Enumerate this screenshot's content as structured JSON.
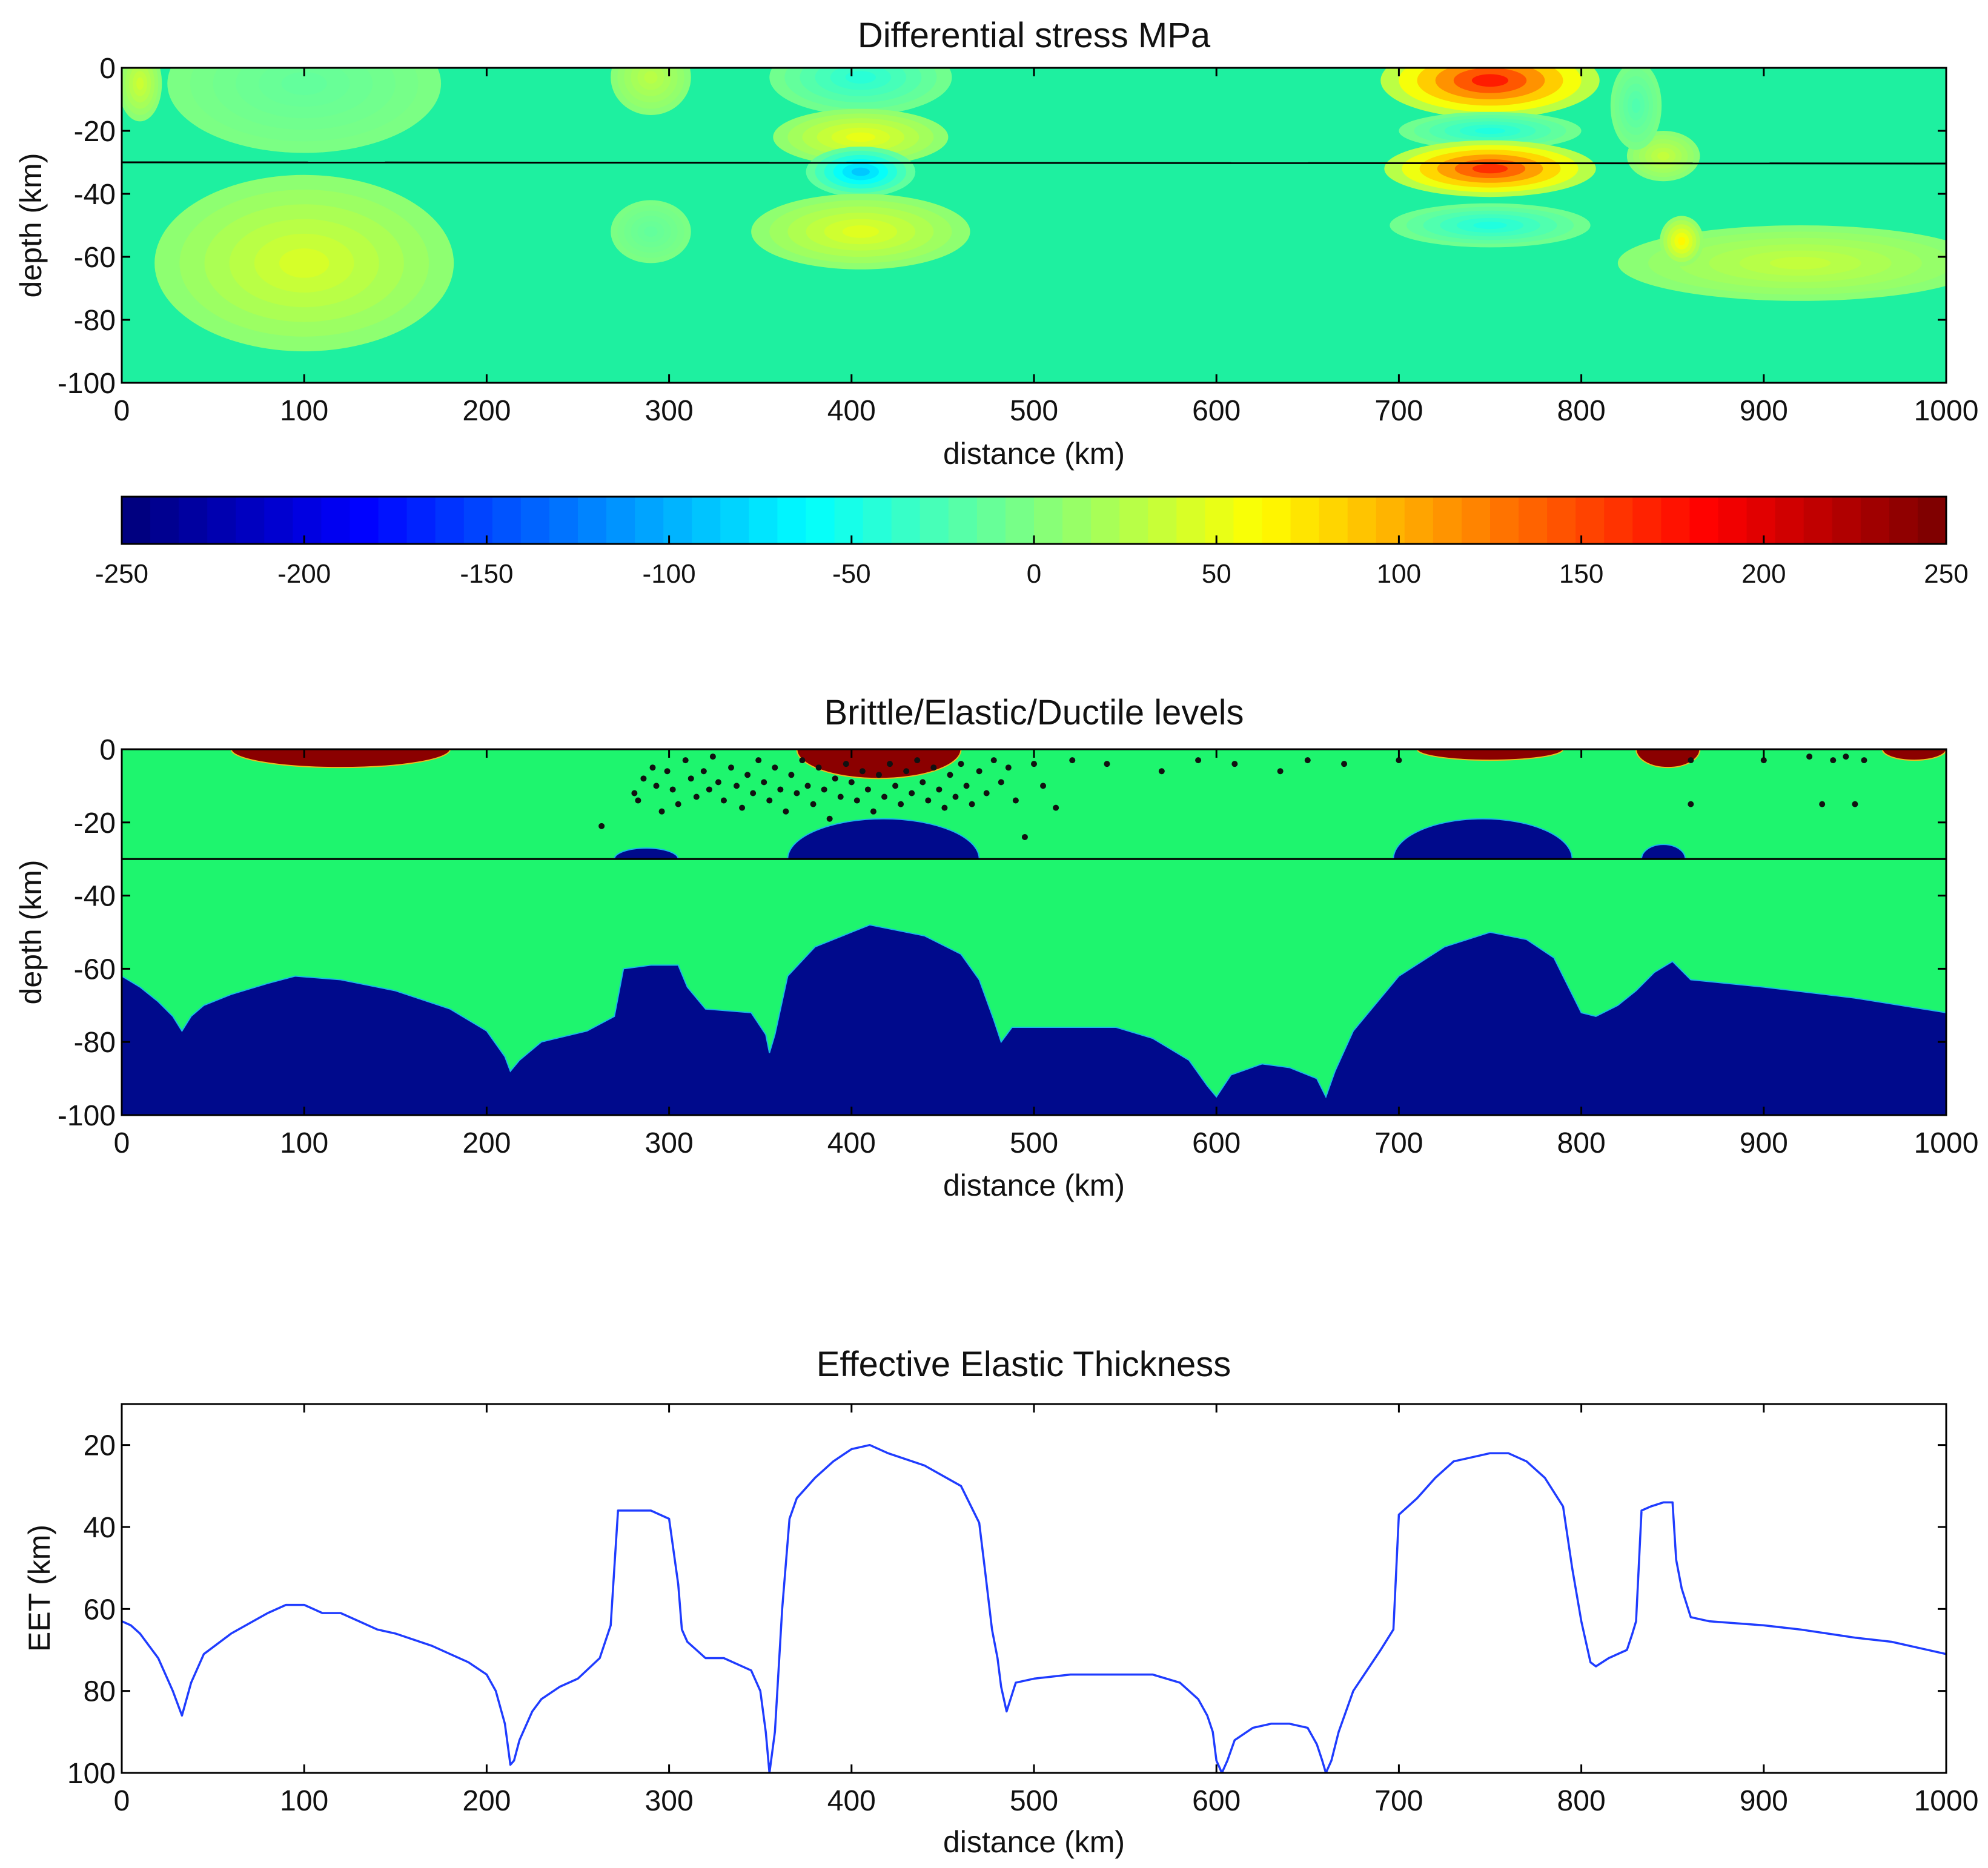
{
  "chart_data": [
    {
      "type": "heatmap",
      "title": "Differential stress MPa",
      "xlabel": "distance (km)",
      "ylabel": "depth (km)",
      "xlim": [
        0,
        1000
      ],
      "ylim": [
        -100,
        0
      ],
      "xticks": [
        "0",
        "100",
        "200",
        "300",
        "400",
        "500",
        "600",
        "700",
        "800",
        "900",
        "1000"
      ],
      "yticks": [
        "0",
        "-20",
        "-40",
        "-60",
        "-80",
        "-100"
      ],
      "moho_depth": -30,
      "colormap": "jet",
      "colorbar": {
        "range": [
          -250,
          250
        ],
        "ticks": [
          "-250",
          "-200",
          "-150",
          "-100",
          "-50",
          "0",
          "50",
          "100",
          "150",
          "200",
          "250"
        ]
      },
      "anomalies": [
        {
          "x": 10,
          "z": -5,
          "rx": 12,
          "rz": 12,
          "value": 40
        },
        {
          "x": 100,
          "z": -5,
          "rx": 75,
          "rz": 22,
          "value": -15
        },
        {
          "x": 100,
          "z": -62,
          "rx": 82,
          "rz": 28,
          "value": 45
        },
        {
          "x": 290,
          "z": -3,
          "rx": 22,
          "rz": 12,
          "value": 30
        },
        {
          "x": 290,
          "z": -52,
          "rx": 22,
          "rz": 10,
          "value": -15
        },
        {
          "x": 405,
          "z": -3,
          "rx": 50,
          "rz": 12,
          "value": -45
        },
        {
          "x": 405,
          "z": -22,
          "rx": 48,
          "rz": 9,
          "value": 55
        },
        {
          "x": 405,
          "z": -33,
          "rx": 30,
          "rz": 8,
          "value": -95
        },
        {
          "x": 405,
          "z": -52,
          "rx": 60,
          "rz": 12,
          "value": 50
        },
        {
          "x": 750,
          "z": -4,
          "rx": 60,
          "rz": 12,
          "value": 185
        },
        {
          "x": 750,
          "z": -20,
          "rx": 50,
          "rz": 6,
          "value": -50
        },
        {
          "x": 750,
          "z": -32,
          "rx": 58,
          "rz": 9,
          "value": 175
        },
        {
          "x": 750,
          "z": -50,
          "rx": 55,
          "rz": 7,
          "value": -50
        },
        {
          "x": 845,
          "z": -28,
          "rx": 20,
          "rz": 8,
          "value": 35
        },
        {
          "x": 830,
          "z": -12,
          "rx": 14,
          "rz": 14,
          "value": -25
        },
        {
          "x": 920,
          "z": -62,
          "rx": 100,
          "rz": 12,
          "value": 35
        },
        {
          "x": 855,
          "z": -55,
          "rx": 12,
          "rz": 8,
          "value": 70
        }
      ]
    },
    {
      "type": "heatmap",
      "title": "Brittle/Elastic/Ductile levels",
      "xlabel": "distance (km)",
      "ylabel": "depth (km)",
      "xlim": [
        0,
        1000
      ],
      "ylim": [
        -100,
        0
      ],
      "xticks": [
        "0",
        "100",
        "200",
        "300",
        "400",
        "500",
        "600",
        "700",
        "800",
        "900",
        "1000"
      ],
      "yticks": [
        "0",
        "-20",
        "-40",
        "-60",
        "-80",
        "-100"
      ],
      "moho_depth": -30,
      "classes": {
        "brittle": "#8b0000",
        "elastic": "#1ef56e",
        "ductile": "#000a8c"
      },
      "brittle_zones": [
        {
          "x0": 60,
          "x1": 180,
          "depth": -5
        },
        {
          "x0": 370,
          "x1": 460,
          "depth": -8
        },
        {
          "x0": 710,
          "x1": 790,
          "depth": -3
        },
        {
          "x0": 830,
          "x1": 865,
          "depth": -5
        },
        {
          "x0": 965,
          "x1": 1000,
          "depth": -3
        }
      ],
      "crust_ductile_zones": [
        {
          "x0": 270,
          "x1": 305,
          "top": -27
        },
        {
          "x0": 365,
          "x1": 470,
          "top": -19
        },
        {
          "x0": 697,
          "x1": 795,
          "top": -19
        },
        {
          "x0": 833,
          "x1": 857,
          "top": -26
        }
      ],
      "mantle_ductile_top": [
        [
          0,
          -62
        ],
        [
          10,
          -65
        ],
        [
          20,
          -69
        ],
        [
          28,
          -73
        ],
        [
          33,
          -77
        ],
        [
          38,
          -73
        ],
        [
          45,
          -70
        ],
        [
          60,
          -67
        ],
        [
          80,
          -64
        ],
        [
          95,
          -62
        ],
        [
          120,
          -63
        ],
        [
          150,
          -66
        ],
        [
          180,
          -71
        ],
        [
          200,
          -77
        ],
        [
          210,
          -84
        ],
        [
          213,
          -88
        ],
        [
          218,
          -85
        ],
        [
          230,
          -80
        ],
        [
          255,
          -77
        ],
        [
          270,
          -73
        ],
        [
          275,
          -60
        ],
        [
          290,
          -59
        ],
        [
          305,
          -59
        ],
        [
          310,
          -65
        ],
        [
          320,
          -71
        ],
        [
          345,
          -72
        ],
        [
          353,
          -78
        ],
        [
          355,
          -83
        ],
        [
          358,
          -78
        ],
        [
          365,
          -62
        ],
        [
          380,
          -54
        ],
        [
          400,
          -50
        ],
        [
          410,
          -48
        ],
        [
          440,
          -51
        ],
        [
          460,
          -56
        ],
        [
          470,
          -63
        ],
        [
          478,
          -74
        ],
        [
          482,
          -80
        ],
        [
          488,
          -76
        ],
        [
          500,
          -76
        ],
        [
          545,
          -76
        ],
        [
          565,
          -79
        ],
        [
          585,
          -85
        ],
        [
          595,
          -92
        ],
        [
          600,
          -95
        ],
        [
          608,
          -89
        ],
        [
          625,
          -86
        ],
        [
          640,
          -87
        ],
        [
          655,
          -90
        ],
        [
          660,
          -95
        ],
        [
          665,
          -88
        ],
        [
          675,
          -77
        ],
        [
          690,
          -68
        ],
        [
          700,
          -62
        ],
        [
          725,
          -54
        ],
        [
          750,
          -50
        ],
        [
          770,
          -52
        ],
        [
          785,
          -57
        ],
        [
          795,
          -67
        ],
        [
          800,
          -72
        ],
        [
          808,
          -73
        ],
        [
          820,
          -70
        ],
        [
          830,
          -66
        ],
        [
          840,
          -61
        ],
        [
          850,
          -58
        ],
        [
          860,
          -63
        ],
        [
          900,
          -65
        ],
        [
          950,
          -68
        ],
        [
          1000,
          -72
        ]
      ],
      "earthquakes": [
        [
          263,
          -21
        ],
        [
          281,
          -12
        ],
        [
          283,
          -14
        ],
        [
          286,
          -8
        ],
        [
          291,
          -5
        ],
        [
          293,
          -10
        ],
        [
          296,
          -17
        ],
        [
          299,
          -6
        ],
        [
          302,
          -11
        ],
        [
          305,
          -15
        ],
        [
          309,
          -3
        ],
        [
          312,
          -8
        ],
        [
          315,
          -13
        ],
        [
          319,
          -6
        ],
        [
          322,
          -11
        ],
        [
          324,
          -2
        ],
        [
          327,
          -9
        ],
        [
          330,
          -14
        ],
        [
          334,
          -5
        ],
        [
          337,
          -10
        ],
        [
          340,
          -16
        ],
        [
          343,
          -7
        ],
        [
          346,
          -12
        ],
        [
          349,
          -3
        ],
        [
          352,
          -9
        ],
        [
          355,
          -14
        ],
        [
          358,
          -5
        ],
        [
          361,
          -11
        ],
        [
          364,
          -17
        ],
        [
          367,
          -7
        ],
        [
          370,
          -12
        ],
        [
          373,
          -3
        ],
        [
          376,
          -10
        ],
        [
          379,
          -15
        ],
        [
          382,
          -5
        ],
        [
          385,
          -11
        ],
        [
          388,
          -19
        ],
        [
          391,
          -8
        ],
        [
          394,
          -13
        ],
        [
          397,
          -4
        ],
        [
          400,
          -9
        ],
        [
          403,
          -14
        ],
        [
          406,
          -6
        ],
        [
          409,
          -11
        ],
        [
          412,
          -17
        ],
        [
          415,
          -7
        ],
        [
          418,
          -13
        ],
        [
          421,
          -4
        ],
        [
          424,
          -10
        ],
        [
          427,
          -15
        ],
        [
          430,
          -6
        ],
        [
          433,
          -12
        ],
        [
          436,
          -3
        ],
        [
          439,
          -9
        ],
        [
          442,
          -14
        ],
        [
          445,
          -5
        ],
        [
          448,
          -11
        ],
        [
          451,
          -16
        ],
        [
          454,
          -7
        ],
        [
          457,
          -13
        ],
        [
          460,
          -4
        ],
        [
          463,
          -10
        ],
        [
          466,
          -15
        ],
        [
          470,
          -6
        ],
        [
          474,
          -12
        ],
        [
          478,
          -3
        ],
        [
          482,
          -9
        ],
        [
          486,
          -5
        ],
        [
          490,
          -14
        ],
        [
          495,
          -24
        ],
        [
          500,
          -4
        ],
        [
          505,
          -10
        ],
        [
          512,
          -16
        ],
        [
          521,
          -3
        ],
        [
          540,
          -4
        ],
        [
          570,
          -6
        ],
        [
          590,
          -3
        ],
        [
          610,
          -4
        ],
        [
          635,
          -6
        ],
        [
          650,
          -3
        ],
        [
          670,
          -4
        ],
        [
          700,
          -3
        ],
        [
          860,
          -3
        ],
        [
          860,
          -15
        ],
        [
          900,
          -3
        ],
        [
          925,
          -2
        ],
        [
          932,
          -15
        ],
        [
          938,
          -3
        ],
        [
          945,
          -2
        ],
        [
          950,
          -15
        ],
        [
          955,
          -3
        ]
      ]
    },
    {
      "type": "line",
      "title": "Effective Elastic Thickness",
      "xlabel": "distance (km)",
      "ylabel": "EET (km)",
      "xlim": [
        0,
        1000
      ],
      "ylim": [
        100,
        10
      ],
      "y_inverted": true,
      "xticks": [
        "0",
        "100",
        "200",
        "300",
        "400",
        "500",
        "600",
        "700",
        "800",
        "900",
        "1000"
      ],
      "yticks": [
        "20",
        "40",
        "60",
        "80",
        "100"
      ],
      "line_color": "#1f3cff",
      "x": [
        0,
        5,
        10,
        20,
        28,
        33,
        38,
        45,
        60,
        80,
        90,
        100,
        110,
        120,
        130,
        140,
        150,
        170,
        180,
        190,
        200,
        205,
        210,
        213,
        215,
        218,
        225,
        230,
        240,
        250,
        262,
        268,
        270,
        272,
        275,
        290,
        300,
        305,
        307,
        310,
        320,
        330,
        345,
        350,
        353,
        355,
        358,
        362,
        366,
        370,
        380,
        390,
        400,
        410,
        420,
        440,
        460,
        470,
        473,
        477,
        480,
        482,
        485,
        490,
        500,
        520,
        540,
        560,
        565,
        580,
        590,
        595,
        598,
        600,
        603,
        606,
        610,
        620,
        630,
        640,
        650,
        655,
        658,
        660,
        663,
        667,
        675,
        690,
        697,
        700,
        710,
        720,
        730,
        750,
        760,
        770,
        780,
        790,
        795,
        800,
        805,
        808,
        815,
        825,
        828,
        830,
        833,
        838,
        845,
        850,
        852,
        855,
        860,
        870,
        900,
        920,
        950,
        970,
        1000
      ],
      "y": [
        63,
        64,
        66,
        72,
        80,
        86,
        78,
        71,
        66,
        61,
        59,
        59,
        61,
        61,
        63,
        65,
        66,
        69,
        71,
        73,
        76,
        80,
        88,
        98,
        97,
        92,
        85,
        82,
        79,
        77,
        72,
        64,
        50,
        36,
        36,
        36,
        38,
        54,
        65,
        68,
        72,
        72,
        75,
        80,
        90,
        100,
        90,
        60,
        38,
        33,
        28,
        24,
        21,
        20,
        22,
        25,
        30,
        39,
        50,
        65,
        72,
        79,
        85,
        78,
        77,
        76,
        76,
        76,
        76,
        78,
        82,
        86,
        90,
        97,
        100,
        97,
        92,
        89,
        88,
        88,
        89,
        93,
        97,
        100,
        97,
        90,
        80,
        70,
        65,
        37,
        33,
        28,
        24,
        22,
        22,
        24,
        28,
        35,
        50,
        63,
        73,
        74,
        72,
        70,
        66,
        63,
        36,
        35,
        34,
        34,
        48,
        55,
        62,
        63,
        64,
        65,
        67,
        68,
        71
      ]
    }
  ]
}
